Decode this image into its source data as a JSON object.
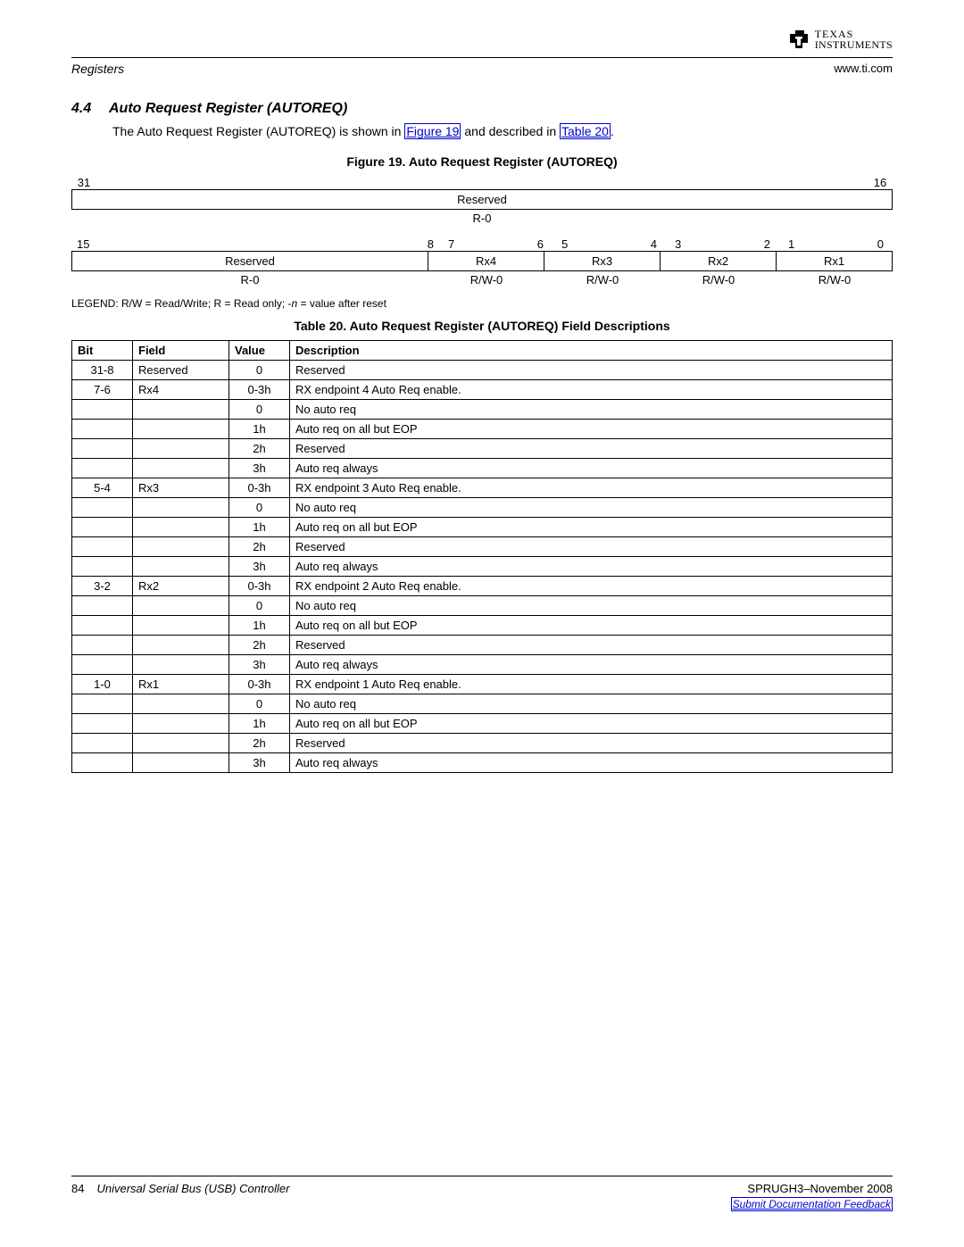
{
  "header": {
    "left": "Registers",
    "right": "www.ti.com",
    "logo_text": "TEXAS INSTRUMENTS"
  },
  "section": {
    "num": "4.4",
    "title": "Auto Request Register (AUTOREQ)",
    "intro_pre": "The Auto Request Register (AUTOREQ) is shown in ",
    "link1": "Figure 19",
    "intro_mid": " and described in ",
    "link2": "Table 20",
    "intro_post": "."
  },
  "figure": {
    "title": "Figure 19. Auto Request Register (AUTOREQ)",
    "row1_left_bit": "31",
    "row1_right_bit": "16",
    "row1_field": "Reserved",
    "row1_rw": "R-0",
    "row2_bits": [
      "15",
      "8",
      "7",
      "6",
      "5",
      "4",
      "3",
      "2",
      "1",
      "0"
    ],
    "row2_fields": [
      "Reserved",
      "Rx4",
      "Rx3",
      "Rx2",
      "Rx1"
    ],
    "row2_rw": [
      "R-0",
      "R/W-0",
      "R/W-0",
      "R/W-0",
      "R/W-0"
    ]
  },
  "legend_text": "LEGEND: R/W = Read/Write; R = Read only; -n = value after reset",
  "table": {
    "title": "Table 20. Auto Request Register (AUTOREQ) Field Descriptions",
    "headers": [
      "Bit",
      "Field",
      "Value",
      "Description"
    ],
    "groups": [
      {
        "bit": "31-8",
        "field": "Reserved",
        "rows": [
          {
            "value": "0",
            "desc": "Reserved"
          }
        ]
      },
      {
        "bit": "7-6",
        "field": "Rx4",
        "rows": [
          {
            "value": "0-3h",
            "desc": "RX endpoint 4 Auto Req enable."
          },
          {
            "value": "0",
            "desc": "No auto req"
          },
          {
            "value": "1h",
            "desc": "Auto req on all but EOP"
          },
          {
            "value": "2h",
            "desc": "Reserved"
          },
          {
            "value": "3h",
            "desc": "Auto req always"
          }
        ]
      },
      {
        "bit": "5-4",
        "field": "Rx3",
        "rows": [
          {
            "value": "0-3h",
            "desc": "RX endpoint 3 Auto Req enable."
          },
          {
            "value": "0",
            "desc": "No auto req"
          },
          {
            "value": "1h",
            "desc": "Auto req on all but EOP"
          },
          {
            "value": "2h",
            "desc": "Reserved"
          },
          {
            "value": "3h",
            "desc": "Auto req always"
          }
        ]
      },
      {
        "bit": "3-2",
        "field": "Rx2",
        "rows": [
          {
            "value": "0-3h",
            "desc": "RX endpoint 2 Auto Req enable."
          },
          {
            "value": "0",
            "desc": "No auto req"
          },
          {
            "value": "1h",
            "desc": "Auto req on all but EOP"
          },
          {
            "value": "2h",
            "desc": "Reserved"
          },
          {
            "value": "3h",
            "desc": "Auto req always"
          }
        ]
      },
      {
        "bit": "1-0",
        "field": "Rx1",
        "rows": [
          {
            "value": "0-3h",
            "desc": "RX endpoint 1 Auto Req enable."
          },
          {
            "value": "0",
            "desc": "No auto req"
          },
          {
            "value": "1h",
            "desc": "Auto req on all but EOP"
          },
          {
            "value": "2h",
            "desc": "Reserved"
          },
          {
            "value": "3h",
            "desc": "Auto req always"
          }
        ]
      }
    ]
  },
  "footer": {
    "page": "84",
    "doc": "Universal Serial Bus (USB) Controller",
    "right": "SPRUGH3–November 2008",
    "feedback": "Submit Documentation Feedback"
  }
}
